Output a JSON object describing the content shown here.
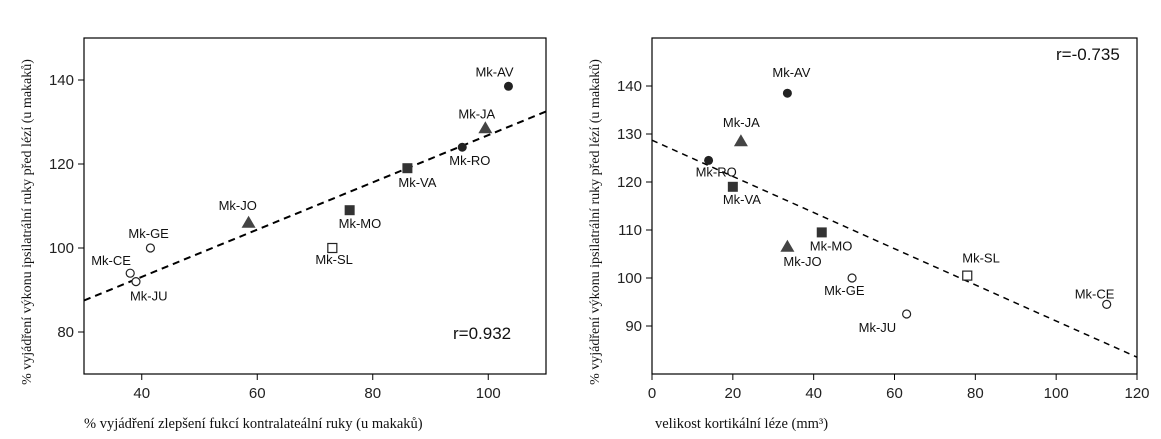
{
  "chart_data": [
    {
      "type": "scatter",
      "ylabel": "% vyjádření výkonu ipsilatrální ruky před lézí (u makaků)",
      "xlabel": "% vyjádření zlepšení fukcí kontralateální ruky (u makaků)",
      "xlim": [
        30,
        110
      ],
      "ylim": [
        70,
        150
      ],
      "xticks": [
        40,
        60,
        80,
        100
      ],
      "yticks": [
        80,
        100,
        120,
        140
      ],
      "annotation": "r=0.932",
      "trendline": {
        "x": [
          30,
          110
        ],
        "y": [
          87.5,
          132.5
        ]
      },
      "points": [
        {
          "label": "Mk-AV",
          "x": 103.5,
          "y": 138.5,
          "marker": "filled-circle"
        },
        {
          "label": "Mk-JA",
          "x": 99.5,
          "y": 128.5,
          "marker": "filled-triangle"
        },
        {
          "label": "Mk-RO",
          "x": 95.5,
          "y": 124,
          "marker": "filled-circle"
        },
        {
          "label": "Mk-VA",
          "x": 86,
          "y": 119,
          "marker": "filled-square"
        },
        {
          "label": "Mk-MO",
          "x": 76,
          "y": 109,
          "marker": "filled-square"
        },
        {
          "label": "Mk-JO",
          "x": 58.5,
          "y": 106,
          "marker": "filled-triangle"
        },
        {
          "label": "Mk-SL",
          "x": 73,
          "y": 100,
          "marker": "open-square"
        },
        {
          "label": "Mk-GE",
          "x": 41.5,
          "y": 100,
          "marker": "open-circle"
        },
        {
          "label": "Mk-CE",
          "x": 38,
          "y": 94,
          "marker": "open-circle"
        },
        {
          "label": "Mk-JU",
          "x": 39,
          "y": 92,
          "marker": "open-circle"
        }
      ]
    },
    {
      "type": "scatter",
      "ylabel": "% vyjádření výkonu ipsilatrální ruky před lézí (u makaků)",
      "xlabel": "velikost kortikální léze (mm³)",
      "xlim": [
        0,
        120
      ],
      "ylim": [
        80,
        150
      ],
      "xticks": [
        0,
        20,
        40,
        60,
        80,
        100,
        120
      ],
      "yticks": [
        90,
        100,
        110,
        120,
        130,
        140
      ],
      "annotation": "r=-0.735",
      "trendline": {
        "x": [
          0,
          120
        ],
        "y": [
          128.7,
          83.5
        ]
      },
      "points": [
        {
          "label": "Mk-AV",
          "x": 33.5,
          "y": 138.5,
          "marker": "filled-circle"
        },
        {
          "label": "Mk-JA",
          "x": 22,
          "y": 128.5,
          "marker": "filled-triangle"
        },
        {
          "label": "Mk-RO",
          "x": 14,
          "y": 124.5,
          "marker": "filled-circle"
        },
        {
          "label": "Mk-VA",
          "x": 20,
          "y": 119,
          "marker": "filled-square"
        },
        {
          "label": "Mk-MO",
          "x": 42,
          "y": 109.5,
          "marker": "filled-square"
        },
        {
          "label": "Mk-JO",
          "x": 33.5,
          "y": 106.5,
          "marker": "filled-triangle"
        },
        {
          "label": "Mk-SL",
          "x": 78,
          "y": 100.5,
          "marker": "open-square"
        },
        {
          "label": "Mk-GE",
          "x": 49.5,
          "y": 100,
          "marker": "open-circle"
        },
        {
          "label": "Mk-JU",
          "x": 63,
          "y": 92.5,
          "marker": "open-circle"
        },
        {
          "label": "Mk-CE",
          "x": 112.5,
          "y": 94.5,
          "marker": "open-circle"
        }
      ]
    }
  ]
}
